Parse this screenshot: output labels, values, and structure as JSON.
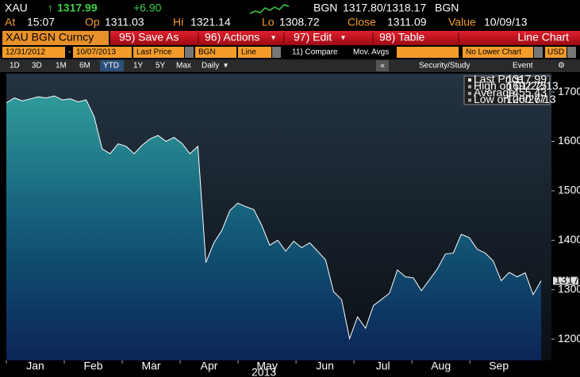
{
  "header": {
    "ticker": "XAU",
    "last": "1317.99",
    "change": "+6.90",
    "source": "BGN",
    "bid_ask": "1317.80/1318.17",
    "source2": "BGN"
  },
  "quote": [
    {
      "label": "At",
      "value": "15:07"
    },
    {
      "label": "Op",
      "value": "1311.03"
    },
    {
      "label": "Hi",
      "value": "1321.14"
    },
    {
      "label": "Lo",
      "value": "1308.72"
    },
    {
      "label": "Close",
      "value": "1311.09"
    },
    {
      "label": "Value",
      "value": "10/09/13"
    }
  ],
  "toolbar": {
    "security": "XAU BGN Curncy",
    "buttons": [
      "95) Save As",
      "96) Actions",
      "97) Edit",
      "98) Table"
    ],
    "view": "Line Chart"
  },
  "settings": {
    "start": "12/31/2012",
    "dash": "-",
    "end": "10/07/2013",
    "field": "Last Price",
    "currency": "BGN",
    "style": "Line",
    "compare": "11) Compare",
    "mov_avgs": "Mov. Avgs",
    "lower": "No Lower Chart",
    "ccy": "USD"
  },
  "periods": [
    "1D",
    "3D",
    "1M",
    "6M",
    "YTD",
    "1Y",
    "5Y",
    "Max"
  ],
  "selected_period": 4,
  "frequency": "Daily",
  "tools": {
    "collapse": "«",
    "study": "Security/Study",
    "event": "Event"
  },
  "chart_data": {
    "type": "area",
    "series": [
      {
        "name": "Last Price",
        "color": "#ffffff",
        "values": [
          1678,
          1688,
          1682,
          1686,
          1690,
          1688,
          1692,
          1684,
          1686,
          1680,
          1684,
          1650,
          1585,
          1575,
          1595,
          1590,
          1575,
          1592,
          1605,
          1612,
          1600,
          1608,
          1596,
          1575,
          1590,
          1355,
          1395,
          1420,
          1460,
          1475,
          1468,
          1462,
          1430,
          1390,
          1400,
          1378,
          1398,
          1385,
          1395,
          1378,
          1360,
          1296,
          1280,
          1201,
          1245,
          1222,
          1268,
          1280,
          1293,
          1340,
          1326,
          1324,
          1298,
          1320,
          1342,
          1372,
          1374,
          1412,
          1405,
          1382,
          1374,
          1358,
          1318,
          1335,
          1326,
          1334,
          1290,
          1318
        ]
      }
    ],
    "month_labels": [
      "Jan",
      "Feb",
      "Mar",
      "Apr",
      "May",
      "Jun",
      "Jul",
      "Aug",
      "Sep"
    ],
    "year_label": "2013",
    "ylim": [
      1157,
      1737
    ],
    "yticks": [
      1200,
      1300,
      1400,
      1500,
      1600,
      1700
    ],
    "grid": false,
    "legend": {
      "corner": "top-right",
      "entries": [
        {
          "label": "Last Price",
          "value": 1317.99
        },
        {
          "label": "High on 01/22/13",
          "value": 1692.75
        },
        {
          "label": "Average",
          "value": 1455.43
        },
        {
          "label": "Low on 06/27/13",
          "value": 1200.67
        }
      ]
    }
  }
}
